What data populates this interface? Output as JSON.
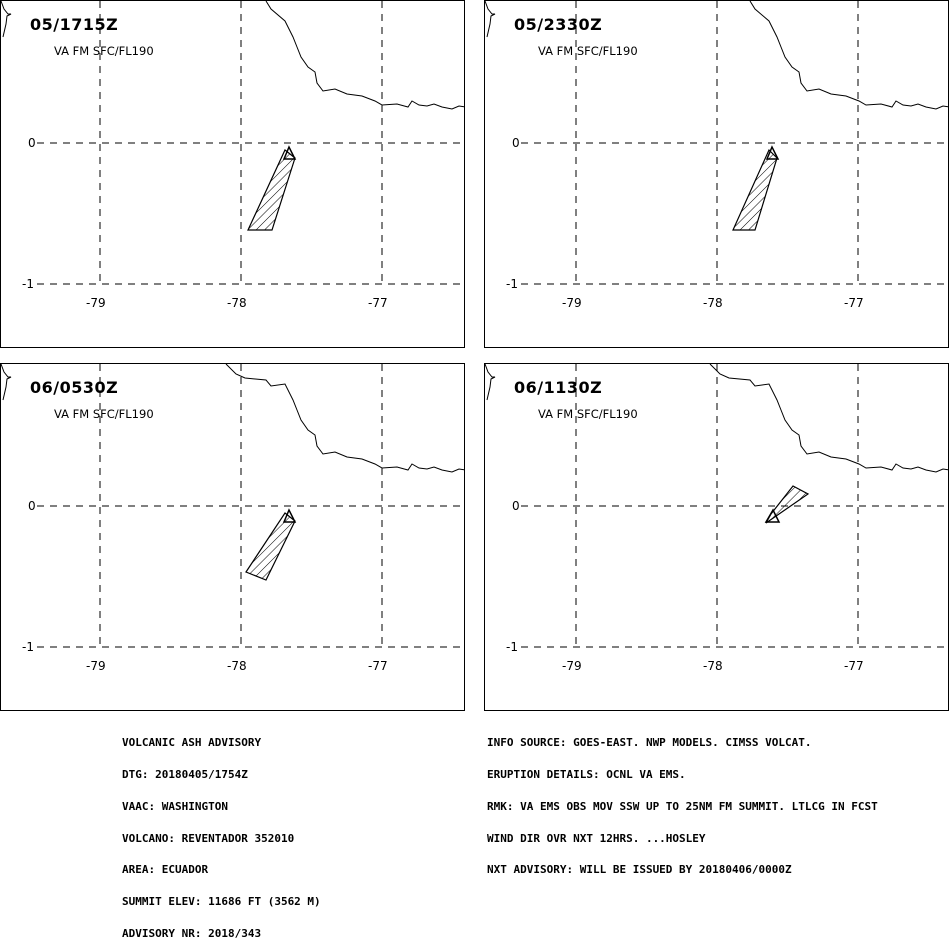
{
  "panels": [
    {
      "time": "05/1715Z",
      "level": "VA FM SFC/FL190"
    },
    {
      "time": "05/2330Z",
      "level": "VA FM SFC/FL190"
    },
    {
      "time": "06/0530Z",
      "level": "VA FM SFC/FL190"
    },
    {
      "time": "06/1130Z",
      "level": "VA FM SFC/FL190"
    }
  ],
  "axis": {
    "lat_labels": [
      "0",
      "-1"
    ],
    "lon_labels": [
      "-79",
      "-78",
      "-77"
    ]
  },
  "volcano_marker": "triangle-icon",
  "advisory_left": [
    "VOLCANIC ASH ADVISORY",
    "DTG: 20180405/1754Z",
    "VAAC: WASHINGTON",
    "VOLCANO: REVENTADOR 352010",
    "AREA: ECUADOR",
    "SUMMIT ELEV: 11686 FT (3562 M)",
    "ADVISORY NR: 2018/343"
  ],
  "advisory_right": [
    "INFO SOURCE: GOES-EAST. NWP MODELS. CIMSS VOLCAT.",
    "ERUPTION DETAILS: OCNL VA EMS.",
    "RMK: VA EMS OBS MOV SSW UP TO 25NM FM SUMMIT. LTLCG IN FCST",
    "WIND DIR OVR NXT 12HRS. ...HOSLEY",
    "NXT ADVISORY: WILL BE ISSUED BY 20180406/0000Z"
  ]
}
